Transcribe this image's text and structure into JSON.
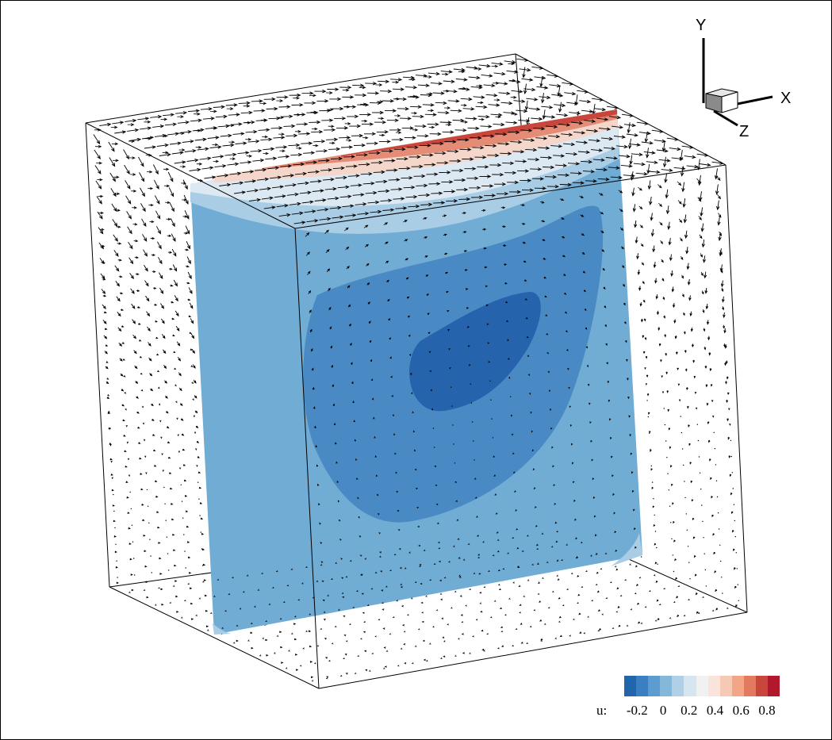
{
  "figure": {
    "colorbar": {
      "variable_label": "u:",
      "tick_labels": [
        "-0.2",
        "0",
        "0.2",
        "0.4",
        "0.6",
        "0.8"
      ],
      "tick_values": [
        -0.2,
        0,
        0.2,
        0.4,
        0.6,
        0.8
      ],
      "range": [
        -0.3,
        0.9
      ],
      "colors": [
        "#2166ac",
        "#3a80c0",
        "#5c9ccf",
        "#83b8db",
        "#afd0e6",
        "#d5e6f1",
        "#f1f1f1",
        "#f9e3da",
        "#f6c9b5",
        "#f2a686",
        "#e27a5f",
        "#c9463d",
        "#b2182b"
      ]
    },
    "axes_triad": {
      "x_label": "X",
      "y_label": "Y",
      "z_label": "Z"
    },
    "contour_plane_colors": {
      "base": "#70acd4",
      "level_1": "#4a8ac4",
      "level_2": "#2563ad",
      "light": "#aacde6",
      "lighter": "#dce9f3",
      "warm_1": "#f4d7ca",
      "warm_2": "#e58c76",
      "warm_3": "#c8463c"
    }
  }
}
